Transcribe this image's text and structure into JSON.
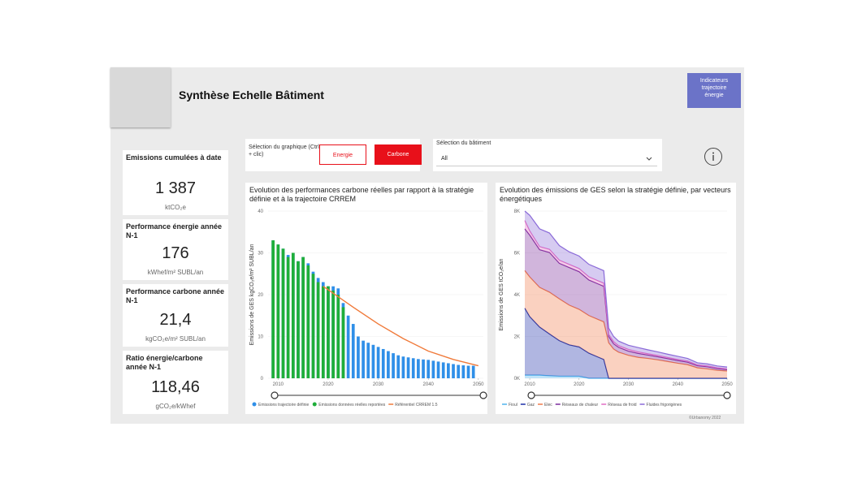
{
  "header": {
    "title": "Synthèse Echelle Bâtiment",
    "button": "Indicateurs trajectoire énergie"
  },
  "kpis": [
    {
      "label": "Emissions cumulées à date",
      "value": "1 387",
      "unit": "ktCO₂e"
    },
    {
      "label": "Performance énergie année N-1",
      "value": "176",
      "unit": "kWhef/m² SUBL/an"
    },
    {
      "label": "Performance carbone année N-1",
      "value": "21,4",
      "unit": "kgCO₂e/m² SUBL/an"
    },
    {
      "label": "Ratio énergie/carbone année N-1",
      "value": "118,46",
      "unit": "gCO₂e/kWhef"
    }
  ],
  "filters": {
    "graph_label": "Sélection du graphique (Ctrl + clic)",
    "options": [
      "Energie",
      "Carbone"
    ],
    "selected": 1,
    "building_label": "Sélection du bâtiment",
    "building_value": "All"
  },
  "footer": "©Urbanomy 2022",
  "chart_data": [
    {
      "type": "bar",
      "title": "Evolution des performances carbone réelles par rapport à la stratégie définie et à la trajectoire CRREM",
      "y_label": "Emissions de GES kgCO₂e/m² SUBL/an",
      "x": [
        2009,
        2010,
        2011,
        2012,
        2013,
        2014,
        2015,
        2016,
        2017,
        2018,
        2019,
        2020,
        2021,
        2022,
        2023,
        2024,
        2025,
        2026,
        2027,
        2028,
        2029,
        2030,
        2031,
        2032,
        2033,
        2034,
        2035,
        2036,
        2037,
        2038,
        2039,
        2040,
        2041,
        2042,
        2043,
        2044,
        2045,
        2046,
        2047,
        2048,
        2049
      ],
      "series": [
        {
          "name": "Emissions trajectoire définie",
          "color": "#2f8fe8",
          "values": [
            33,
            32,
            31,
            29.5,
            30,
            28,
            29,
            27.5,
            25.5,
            24,
            23,
            22,
            22,
            21.5,
            18,
            15,
            13,
            10,
            9,
            8.5,
            8,
            7.5,
            7,
            6.5,
            6,
            5.5,
            5.2,
            5,
            4.8,
            4.6,
            4.5,
            4.4,
            4.2,
            4,
            3.8,
            3.6,
            3.4,
            3.2,
            3.1,
            3,
            3
          ]
        },
        {
          "name": "Emissions données réelles reportées",
          "color": "#1fae3a",
          "values": [
            33,
            32,
            31,
            29,
            30,
            28,
            29,
            27,
            25,
            23,
            22,
            22,
            21,
            20,
            17,
            null,
            null,
            null,
            null,
            null,
            null,
            null,
            null,
            null,
            null,
            null,
            null,
            null,
            null,
            null,
            null,
            null,
            null,
            null,
            null,
            null,
            null,
            null,
            null,
            null,
            null
          ]
        },
        {
          "name": "Référentiel CRREM 1.5",
          "color": "#f07a3a",
          "type": "line",
          "x": [
            2019,
            2025,
            2030,
            2035,
            2040,
            2045,
            2050
          ],
          "values": [
            22,
            17,
            13,
            9.5,
            6.5,
            4.5,
            3
          ]
        }
      ],
      "xlim": [
        2008,
        2051
      ],
      "xticks": [
        2010,
        2020,
        2030,
        2040,
        2050
      ],
      "ylim": [
        0,
        40
      ],
      "yticks": [
        0,
        10,
        20,
        30,
        40
      ]
    },
    {
      "type": "area",
      "stacked": true,
      "title": "Evolution des émissions de GES selon la stratégie définie, par vecteurs énergétiques",
      "y_label": "Emissions de GES tCO₂e/an",
      "x": [
        2009,
        2010,
        2012,
        2014,
        2016,
        2018,
        2020,
        2022,
        2024,
        2025,
        2026,
        2027,
        2028,
        2030,
        2032,
        2034,
        2036,
        2038,
        2040,
        2042,
        2044,
        2046,
        2048,
        2050
      ],
      "series": [
        {
          "name": "Fioul",
          "color": "#4fb3ee",
          "values": [
            150,
            150,
            150,
            120,
            100,
            100,
            100,
            0,
            0,
            0,
            0,
            0,
            0,
            0,
            0,
            0,
            0,
            0,
            0,
            0,
            0,
            0,
            0,
            0
          ]
        },
        {
          "name": "Gaz",
          "color": "#1c2fa8",
          "values": [
            3200,
            2800,
            2300,
            2000,
            1700,
            1500,
            1400,
            1200,
            1000,
            900,
            0,
            0,
            0,
            0,
            0,
            0,
            0,
            0,
            0,
            0,
            0,
            0,
            0,
            0
          ]
        },
        {
          "name": "Elec",
          "color": "#f07a4a",
          "values": [
            1800,
            1900,
            1900,
            2000,
            2000,
            1900,
            1800,
            1800,
            1800,
            1800,
            1700,
            1400,
            1250,
            1100,
            1000,
            950,
            880,
            800,
            720,
            650,
            500,
            450,
            380,
            350
          ]
        },
        {
          "name": "Réseaux de chaleur",
          "color": "#7a2a9c",
          "values": [
            2000,
            2000,
            1800,
            1900,
            1700,
            1800,
            1800,
            1700,
            1700,
            1700,
            300,
            250,
            230,
            200,
            190,
            160,
            150,
            140,
            130,
            120,
            100,
            100,
            80,
            60
          ]
        },
        {
          "name": "Réseau de froid",
          "color": "#e06cc4",
          "values": [
            400,
            200,
            150,
            150,
            150,
            150,
            150,
            150,
            150,
            150,
            100,
            100,
            80,
            80,
            70,
            60,
            60,
            50,
            50,
            50,
            40,
            40,
            40,
            40
          ]
        },
        {
          "name": "Fluides frigorigènes",
          "color": "#8a6ad8",
          "values": [
            450,
            750,
            850,
            780,
            700,
            600,
            600,
            600,
            600,
            600,
            300,
            250,
            220,
            200,
            210,
            190,
            170,
            160,
            150,
            130,
            100,
            100,
            90,
            90
          ]
        }
      ],
      "xlim": [
        2009,
        2050
      ],
      "xticks": [
        2010,
        2020,
        2030,
        2040,
        2050
      ],
      "ylim": [
        0,
        8000
      ],
      "yticks": [
        {
          "value": 0,
          "label": "0K"
        },
        {
          "value": 2000,
          "label": "2K"
        },
        {
          "value": 4000,
          "label": "4K"
        },
        {
          "value": 6000,
          "label": "6K"
        },
        {
          "value": 8000,
          "label": "8K"
        }
      ]
    }
  ]
}
